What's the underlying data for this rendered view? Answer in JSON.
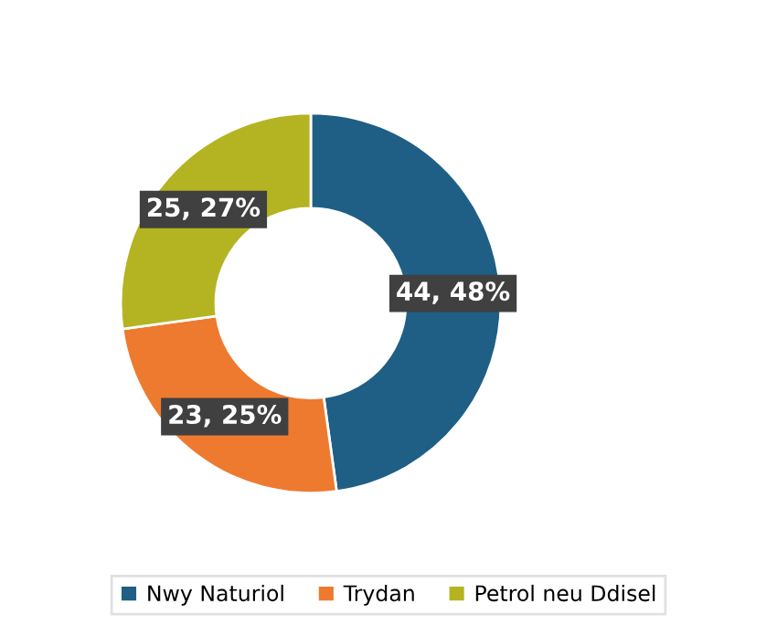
{
  "chart_data": {
    "type": "donut",
    "categories": [
      "Nwy Naturiol",
      "Trydan",
      "Petrol neu Ddisel"
    ],
    "values": [
      44,
      23,
      25
    ],
    "colors": [
      "#1f5f85",
      "#ee7a30",
      "#b4b423"
    ],
    "value_labels": [
      "44, 48%",
      "23, 25%",
      "25, 27%"
    ],
    "legend": "bottom"
  }
}
